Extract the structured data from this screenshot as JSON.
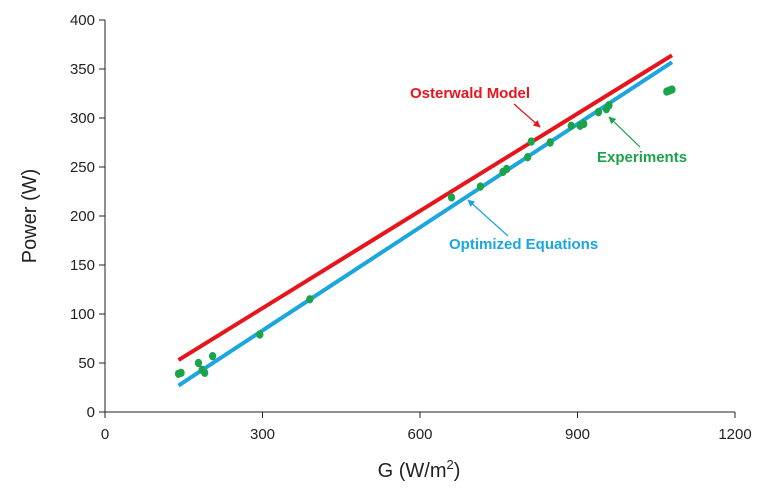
{
  "chart_data": {
    "type": "scatter",
    "xlabel": "G (W/m²)",
    "ylabel": "Power (W)",
    "xlim": [
      0,
      1200
    ],
    "ylim": [
      0,
      400
    ],
    "xticks": [
      0,
      300,
      600,
      900,
      1200
    ],
    "yticks": [
      0,
      50,
      100,
      150,
      200,
      250,
      300,
      350,
      400
    ],
    "grid": false,
    "series": [
      {
        "name": "Osterwald Model",
        "kind": "line",
        "color": "#e8141b",
        "x": [
          140,
          1080
        ],
        "y": [
          53,
          364
        ]
      },
      {
        "name": "Optimized Equations",
        "kind": "line",
        "color": "#1ba6df",
        "x": [
          140,
          1080
        ],
        "y": [
          27,
          357
        ]
      },
      {
        "name": "Experiments",
        "kind": "scatter",
        "color": "#1aa34a",
        "x": [
          140,
          145,
          178,
          185,
          190,
          205,
          295,
          390,
          660,
          715,
          758,
          765,
          805,
          812,
          848,
          888,
          905,
          912,
          940,
          955,
          960,
          1070,
          1075,
          1080
        ],
        "y": [
          39,
          40,
          50,
          43,
          40,
          57,
          79,
          115,
          219,
          230,
          245,
          248,
          260,
          276,
          275,
          292,
          292,
          294,
          306,
          309,
          313,
          327,
          328,
          329
        ]
      }
    ],
    "annotations": [
      {
        "text": "Osterwald Model",
        "color": "#e8141b"
      },
      {
        "text": "Experiments",
        "color": "#1aa34a"
      },
      {
        "text": "Optimized Equations",
        "color": "#1ba6df"
      }
    ]
  }
}
